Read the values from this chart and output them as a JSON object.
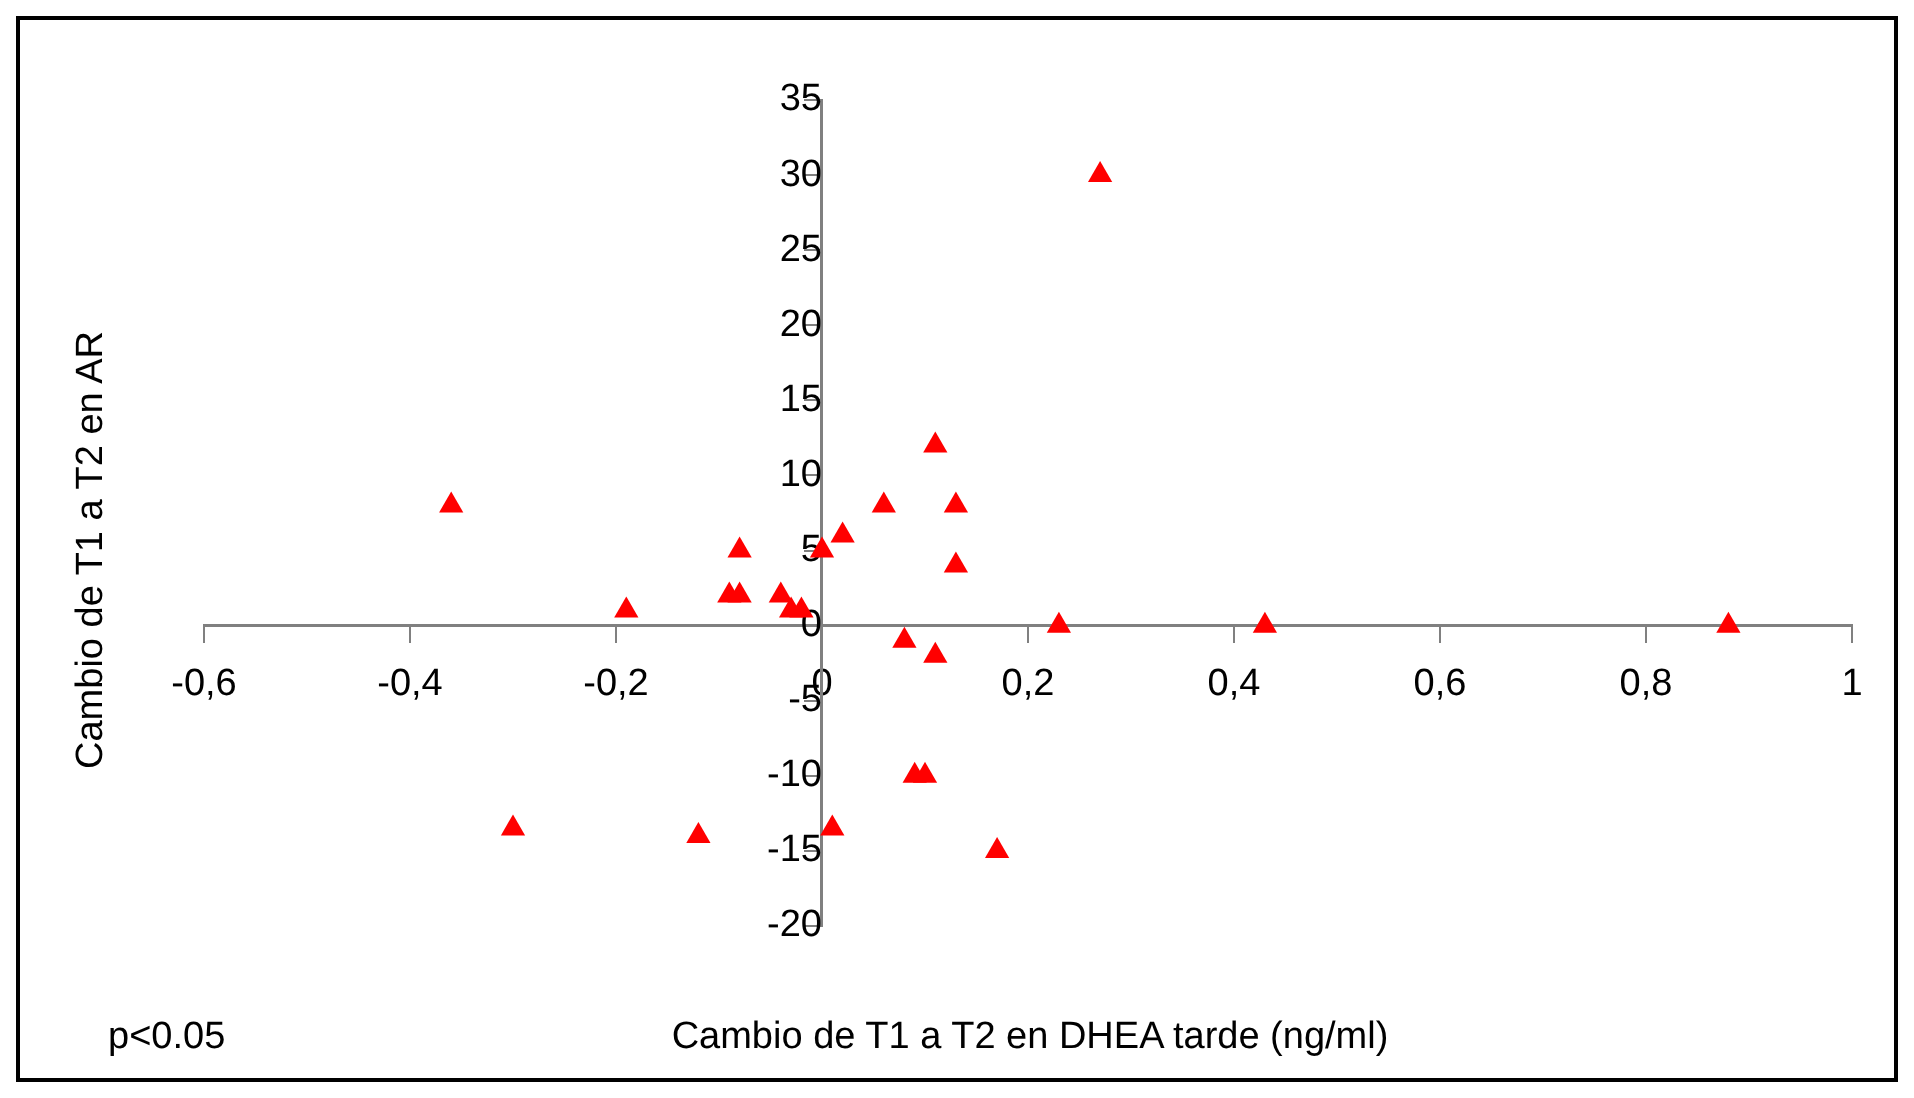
{
  "chart_data": {
    "type": "scatter",
    "xlabel": "Cambio de T1 a T2 en DHEA tarde (ng/ml)",
    "ylabel": "Cambio de T1 a T2 en AR",
    "annotations": [
      "p<0.05"
    ],
    "x": [
      0.27,
      -0.36,
      0.11,
      0.13,
      0.06,
      0.13,
      0.02,
      0,
      -0.08,
      -0.09,
      -0.08,
      -0.04,
      -0.03,
      -0.02,
      -0.19,
      0.23,
      0.43,
      0.88,
      0.08,
      0.11,
      0.09,
      0.1,
      0.17,
      0.01,
      -0.3,
      -0.12
    ],
    "series": [
      {
        "color": "#ff0000",
        "values": [
          30,
          8,
          12,
          8,
          8,
          4,
          6,
          5,
          5,
          2,
          2,
          2,
          1,
          1,
          1,
          0,
          0,
          0,
          -1,
          -2,
          -10,
          -10,
          -15,
          -13.5,
          -13.5,
          -14
        ]
      }
    ],
    "xlim": [
      -0.6,
      1
    ],
    "xticks": [
      {
        "value": -0.6,
        "label": "-0,6"
      },
      {
        "value": -0.4,
        "label": "-0,4"
      },
      {
        "value": -0.2,
        "label": "-0,2"
      },
      0,
      {
        "value": 0.2,
        "label": "0,2"
      },
      {
        "value": 0.4,
        "label": "0,4"
      },
      {
        "value": 0.6,
        "label": "0,6"
      },
      {
        "value": 0.8,
        "label": "0,8"
      },
      1
    ],
    "ylim": [
      -20,
      35
    ],
    "yticks": [
      -20,
      -15,
      -10,
      -5,
      0,
      5,
      10,
      15,
      20,
      25,
      30,
      35
    ],
    "grid": false,
    "legend": false,
    "marker": "triangle"
  }
}
